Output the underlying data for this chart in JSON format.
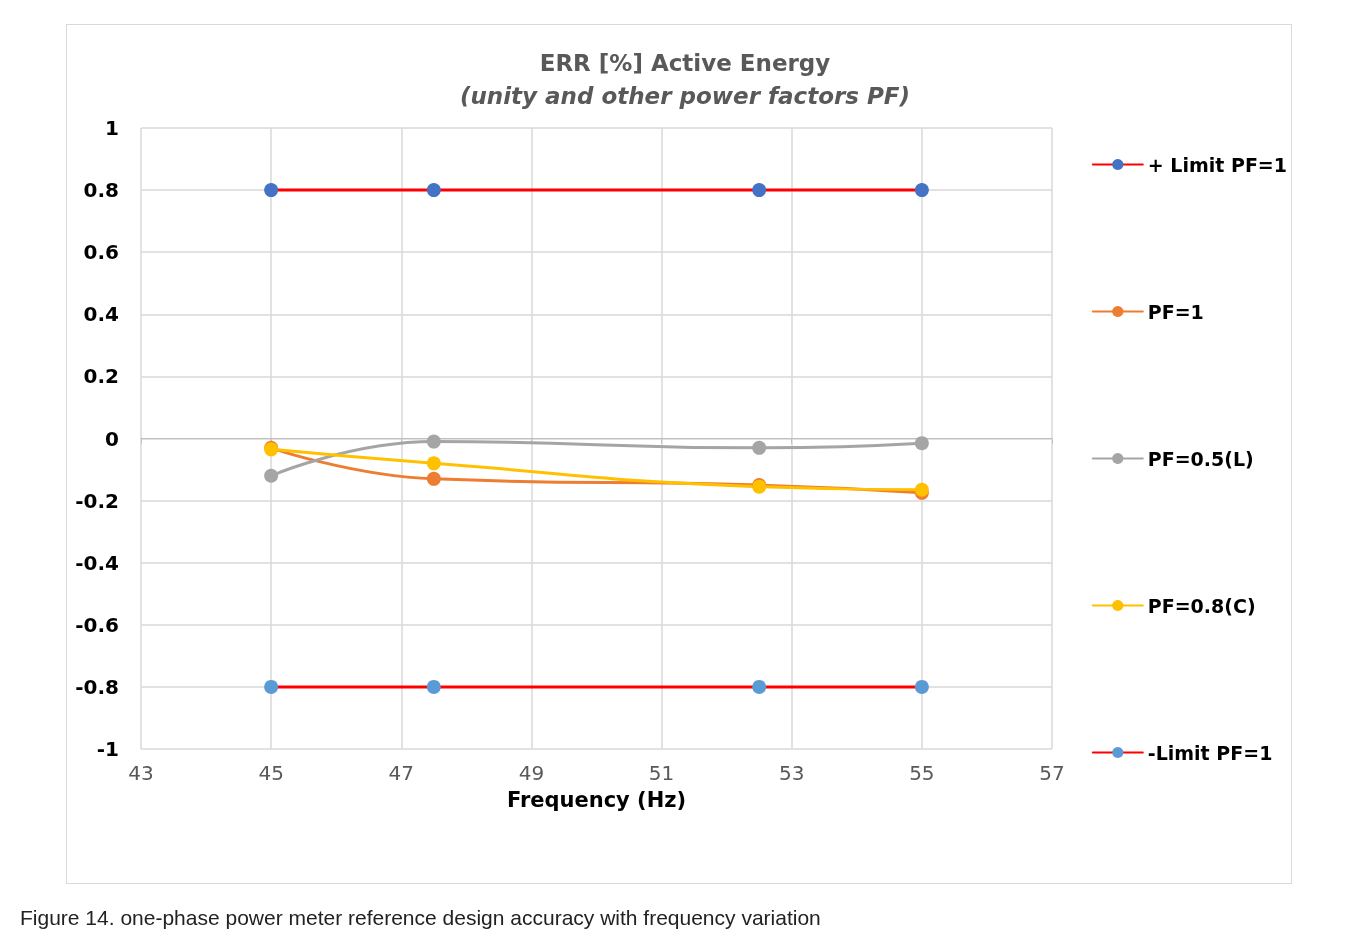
{
  "chart_data": {
    "type": "line",
    "title": "ERR [%] Active Energy",
    "subtitle": "(unity and other power factors PF)",
    "xlabel": "Frequency (Hz)",
    "x": [
      45,
      47.5,
      52.5,
      55
    ],
    "series": [
      {
        "name": "+ Limit PF=1",
        "color": "#ff0000",
        "colors": [
          "#4472c4",
          "#4472c4",
          "#4472c4",
          "#4472c4"
        ],
        "values": [
          0.8,
          0.8,
          0.8,
          0.8
        ]
      },
      {
        "name": "PF=1",
        "color": "#ed7d31",
        "values": [
          -0.03,
          -0.13,
          -0.15,
          -0.175
        ]
      },
      {
        "name": "PF=0.5(L)",
        "color": "#a5a5a5",
        "values": [
          -0.12,
          -0.01,
          -0.03,
          -0.015
        ]
      },
      {
        "name": "PF=0.8(C)",
        "color": "#ffc000",
        "values": [
          -0.035,
          -0.08,
          -0.155,
          -0.165
        ]
      },
      {
        "name": "-Limit PF=1",
        "color": "#ff0000",
        "colors": [
          "#5b9bd5",
          "#5b9bd5",
          "#5b9bd5",
          "#5b9bd5"
        ],
        "values": [
          -0.8,
          -0.8,
          -0.8,
          -0.8
        ]
      }
    ],
    "xlim": [
      43,
      57
    ],
    "xticks": [
      43,
      45,
      47,
      49,
      51,
      53,
      55,
      57
    ],
    "ylim": [
      -1,
      1
    ],
    "yticks": [
      -1,
      -0.8,
      -0.6,
      -0.4,
      -0.2,
      0,
      0.2,
      0.4,
      0.6,
      0.8,
      1
    ],
    "grid": true,
    "legend": "right",
    "marker": "circle",
    "line_style": "solid",
    "annotations": [
      "Figure 14.  one-phase power meter reference design accuracy with frequency variation"
    ]
  }
}
